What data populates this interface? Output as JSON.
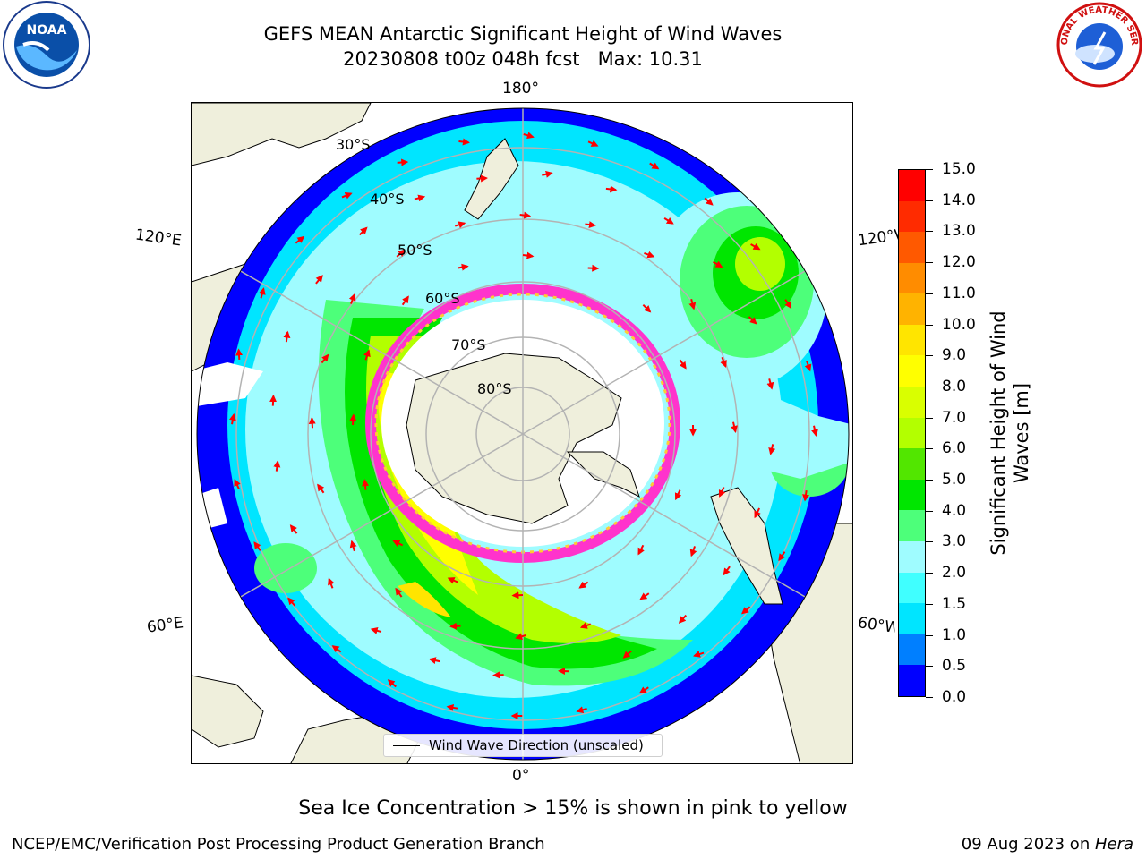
{
  "title": {
    "line1": "GEFS MEAN Antarctic Significant Height of Wind Waves",
    "line2": "20230808 t00z 048h fcst   Max: 10.31"
  },
  "map": {
    "projection": "south polar stereographic",
    "longitude_labels": {
      "top": "180°",
      "bottom": "0°",
      "left_upper": "120°E",
      "left_lower": "60°E",
      "right_upper": "120°W",
      "right_lower": "60°W"
    },
    "latitude_labels": [
      "30°S",
      "40°S",
      "50°S",
      "60°S",
      "70°S",
      "80°S"
    ],
    "colors": {
      "land": "#efefdc",
      "grid": "#b3b3b3",
      "arrow": "#ff0000",
      "sea_ice": [
        "#ff33cc",
        "#ffcc33"
      ]
    }
  },
  "legend": {
    "label": "Wind Wave Direction (unscaled)"
  },
  "colorbar": {
    "title": "Significant Height of Wind Waves [m]",
    "title_line1": "Significant Height of Wind",
    "title_line2": "Waves [m]",
    "ticks": [
      "0.0",
      "0.5",
      "1.0",
      "1.5",
      "2.0",
      "3.0",
      "4.0",
      "5.0",
      "6.0",
      "7.0",
      "8.0",
      "9.0",
      "10.0",
      "11.0",
      "12.0",
      "13.0",
      "14.0",
      "15.0"
    ],
    "colors": [
      "#0000ff",
      "#007fff",
      "#00e5ff",
      "#40ffff",
      "#9ffcff",
      "#4dff7a",
      "#00e600",
      "#52e600",
      "#b3ff00",
      "#d9ff00",
      "#ffff00",
      "#ffe500",
      "#ffb300",
      "#ff8c00",
      "#ff5900",
      "#ff2b00",
      "#ff0000"
    ]
  },
  "footnote": "Sea Ice Concentration > 15% is shown in pink to yellow",
  "credits": {
    "left": "NCEP/EMC/Verification Post Processing Product Generation Branch",
    "right_date": "09 Aug 2023 on ",
    "right_machine": "Hera"
  },
  "logos": {
    "noaa": "NOAA",
    "nws": "NATIONAL WEATHER SERVICE"
  }
}
